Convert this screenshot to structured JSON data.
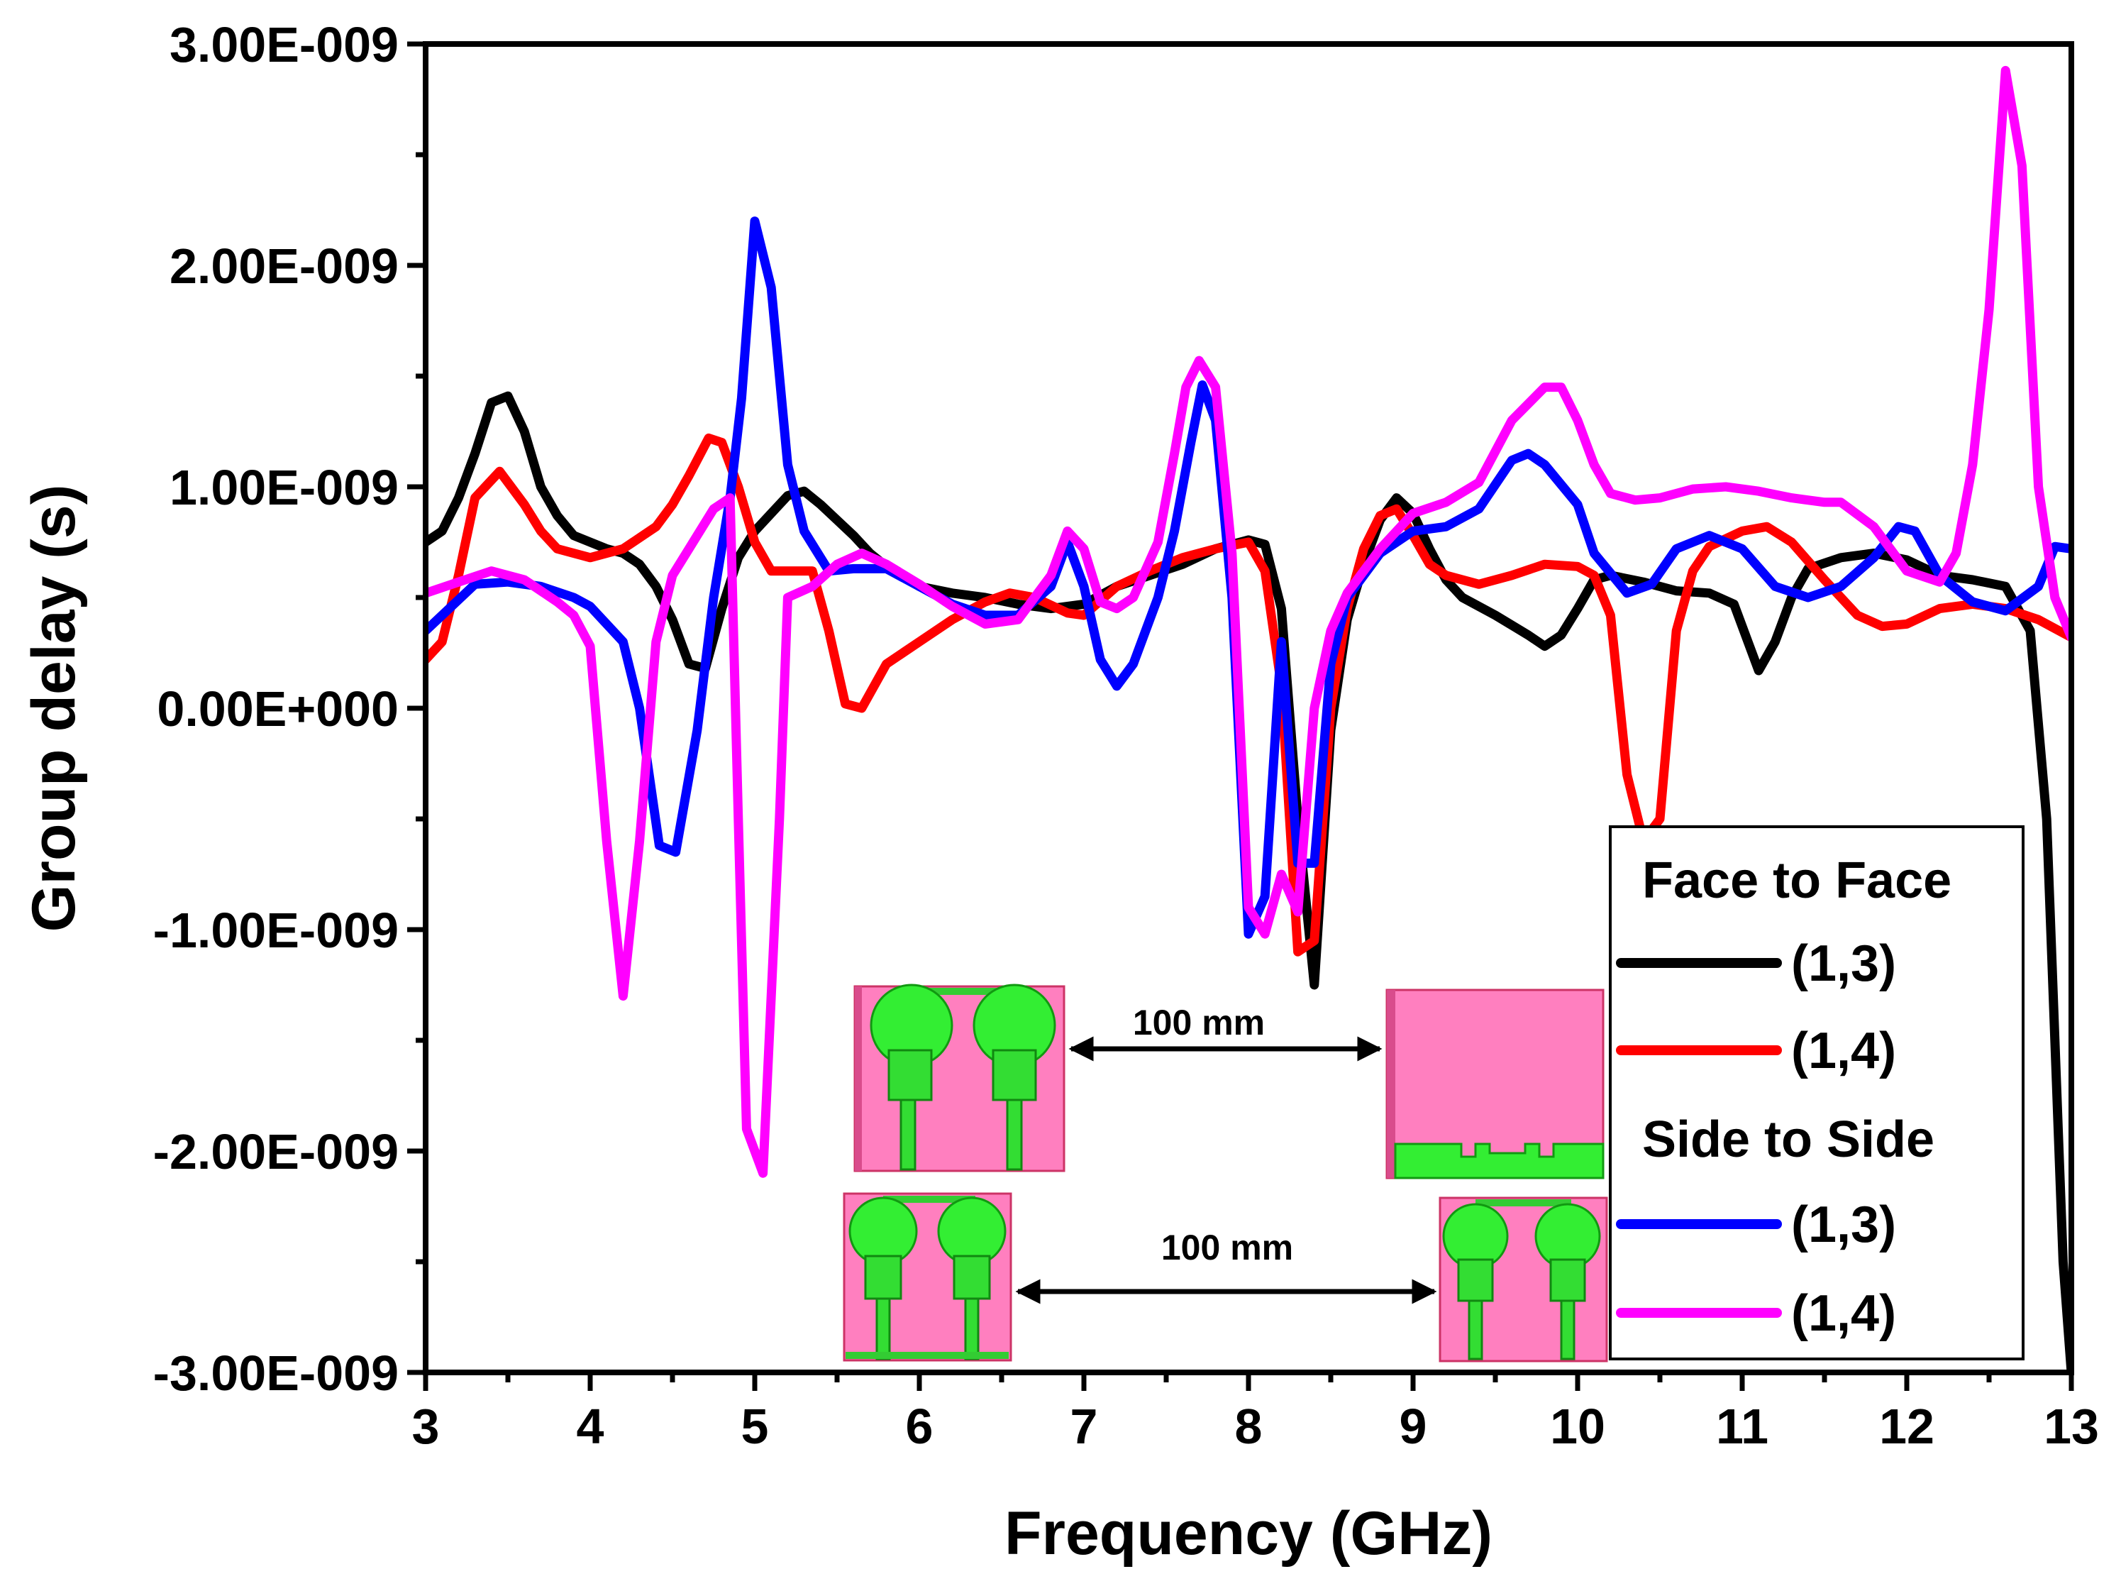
{
  "chart_data": {
    "type": "line",
    "title": "",
    "xlabel": "Frequency (GHz)",
    "ylabel": "Group delay (s)",
    "xlim": [
      3,
      13
    ],
    "ylim": [
      -3e-09,
      3e-09
    ],
    "x_ticks": [
      3,
      4,
      5,
      6,
      7,
      8,
      9,
      10,
      11,
      12,
      13
    ],
    "x_tick_labels": [
      "3",
      "4",
      "5",
      "6",
      "7",
      "8",
      "9",
      "10",
      "11",
      "12",
      "13"
    ],
    "y_ticks": [
      -3e-09,
      -2e-09,
      -1e-09,
      0,
      1e-09,
      2e-09,
      3e-09
    ],
    "y_tick_labels": [
      "-3.00E-009",
      "-2.00E-009",
      "-1.00E-009",
      "0.00E+000",
      "1.00E-009",
      "2.00E-009",
      "3.00E-009"
    ],
    "legend": {
      "position": "bottom-right",
      "groups": [
        {
          "title": "Face to Face",
          "entries": [
            "(1,3)",
            "(1,4)"
          ]
        },
        {
          "title": "Side to Side",
          "entries": [
            "(1,3)",
            "(1,4)"
          ]
        }
      ]
    },
    "annotations": [
      {
        "text": "100 mm"
      },
      {
        "text": "100 mm"
      }
    ],
    "series": [
      {
        "name": "Face to Face (1,3)",
        "color": "#000000",
        "points": [
          [
            3.0,
            0.75
          ],
          [
            3.1,
            0.8
          ],
          [
            3.2,
            0.95
          ],
          [
            3.3,
            1.15
          ],
          [
            3.4,
            1.38
          ],
          [
            3.5,
            1.41
          ],
          [
            3.6,
            1.25
          ],
          [
            3.7,
            1.0
          ],
          [
            3.8,
            0.87
          ],
          [
            3.9,
            0.78
          ],
          [
            4.0,
            0.75
          ],
          [
            4.1,
            0.72
          ],
          [
            4.2,
            0.7
          ],
          [
            4.3,
            0.65
          ],
          [
            4.4,
            0.55
          ],
          [
            4.5,
            0.4
          ],
          [
            4.6,
            0.2
          ],
          [
            4.7,
            0.18
          ],
          [
            4.8,
            0.45
          ],
          [
            4.9,
            0.68
          ],
          [
            5.0,
            0.8
          ],
          [
            5.1,
            0.88
          ],
          [
            5.2,
            0.96
          ],
          [
            5.3,
            0.98
          ],
          [
            5.4,
            0.92
          ],
          [
            5.5,
            0.85
          ],
          [
            5.6,
            0.78
          ],
          [
            5.7,
            0.7
          ],
          [
            5.8,
            0.64
          ],
          [
            5.9,
            0.6
          ],
          [
            6.0,
            0.55
          ],
          [
            6.2,
            0.52
          ],
          [
            6.4,
            0.5
          ],
          [
            6.6,
            0.47
          ],
          [
            6.8,
            0.45
          ],
          [
            7.0,
            0.47
          ],
          [
            7.2,
            0.55
          ],
          [
            7.4,
            0.6
          ],
          [
            7.6,
            0.65
          ],
          [
            7.8,
            0.72
          ],
          [
            8.0,
            0.76
          ],
          [
            8.1,
            0.74
          ],
          [
            8.2,
            0.45
          ],
          [
            8.3,
            -0.5
          ],
          [
            8.4,
            -1.25
          ],
          [
            8.5,
            -0.1
          ],
          [
            8.6,
            0.4
          ],
          [
            8.7,
            0.65
          ],
          [
            8.8,
            0.85
          ],
          [
            8.9,
            0.95
          ],
          [
            9.0,
            0.88
          ],
          [
            9.1,
            0.72
          ],
          [
            9.2,
            0.58
          ],
          [
            9.3,
            0.5
          ],
          [
            9.5,
            0.42
          ],
          [
            9.7,
            0.33
          ],
          [
            9.8,
            0.28
          ],
          [
            9.9,
            0.33
          ],
          [
            10.0,
            0.45
          ],
          [
            10.1,
            0.58
          ],
          [
            10.2,
            0.6
          ],
          [
            10.4,
            0.57
          ],
          [
            10.6,
            0.53
          ],
          [
            10.8,
            0.52
          ],
          [
            10.95,
            0.47
          ],
          [
            11.1,
            0.17
          ],
          [
            11.2,
            0.3
          ],
          [
            11.3,
            0.5
          ],
          [
            11.4,
            0.63
          ],
          [
            11.6,
            0.68
          ],
          [
            11.8,
            0.7
          ],
          [
            12.0,
            0.67
          ],
          [
            12.2,
            0.6
          ],
          [
            12.4,
            0.58
          ],
          [
            12.6,
            0.55
          ],
          [
            12.75,
            0.35
          ],
          [
            12.85,
            -0.5
          ],
          [
            12.95,
            -2.5
          ],
          [
            13.0,
            -3.0
          ]
        ]
      },
      {
        "name": "Face to Face (1,4)",
        "color": "#ff0000",
        "points": [
          [
            3.0,
            0.22
          ],
          [
            3.1,
            0.3
          ],
          [
            3.2,
            0.6
          ],
          [
            3.3,
            0.95
          ],
          [
            3.45,
            1.07
          ],
          [
            3.6,
            0.92
          ],
          [
            3.7,
            0.8
          ],
          [
            3.8,
            0.72
          ],
          [
            4.0,
            0.68
          ],
          [
            4.2,
            0.72
          ],
          [
            4.4,
            0.82
          ],
          [
            4.5,
            0.92
          ],
          [
            4.6,
            1.05
          ],
          [
            4.72,
            1.22
          ],
          [
            4.8,
            1.2
          ],
          [
            4.9,
            1.0
          ],
          [
            5.0,
            0.75
          ],
          [
            5.1,
            0.62
          ],
          [
            5.2,
            0.62
          ],
          [
            5.35,
            0.62
          ],
          [
            5.45,
            0.35
          ],
          [
            5.55,
            0.02
          ],
          [
            5.65,
            0.0
          ],
          [
            5.8,
            0.2
          ],
          [
            6.0,
            0.3
          ],
          [
            6.2,
            0.4
          ],
          [
            6.4,
            0.48
          ],
          [
            6.55,
            0.52
          ],
          [
            6.7,
            0.5
          ],
          [
            6.9,
            0.43
          ],
          [
            7.0,
            0.42
          ],
          [
            7.2,
            0.55
          ],
          [
            7.4,
            0.62
          ],
          [
            7.6,
            0.68
          ],
          [
            7.8,
            0.72
          ],
          [
            8.0,
            0.75
          ],
          [
            8.1,
            0.62
          ],
          [
            8.2,
            0.1
          ],
          [
            8.3,
            -1.1
          ],
          [
            8.4,
            -1.05
          ],
          [
            8.5,
            0.0
          ],
          [
            8.6,
            0.45
          ],
          [
            8.7,
            0.72
          ],
          [
            8.8,
            0.87
          ],
          [
            8.9,
            0.9
          ],
          [
            9.0,
            0.78
          ],
          [
            9.1,
            0.65
          ],
          [
            9.2,
            0.6
          ],
          [
            9.4,
            0.56
          ],
          [
            9.6,
            0.6
          ],
          [
            9.8,
            0.65
          ],
          [
            10.0,
            0.64
          ],
          [
            10.1,
            0.6
          ],
          [
            10.2,
            0.42
          ],
          [
            10.3,
            -0.3
          ],
          [
            10.4,
            -0.6
          ],
          [
            10.5,
            -0.5
          ],
          [
            10.6,
            0.35
          ],
          [
            10.7,
            0.62
          ],
          [
            10.8,
            0.73
          ],
          [
            11.0,
            0.8
          ],
          [
            11.15,
            0.82
          ],
          [
            11.3,
            0.75
          ],
          [
            11.5,
            0.58
          ],
          [
            11.7,
            0.42
          ],
          [
            11.85,
            0.37
          ],
          [
            12.0,
            0.38
          ],
          [
            12.2,
            0.45
          ],
          [
            12.4,
            0.47
          ],
          [
            12.6,
            0.45
          ],
          [
            12.8,
            0.4
          ],
          [
            13.0,
            0.32
          ]
        ]
      },
      {
        "name": "Side to Side (1,3)",
        "color": "#0000ff",
        "points": [
          [
            3.0,
            0.35
          ],
          [
            3.1,
            0.42
          ],
          [
            3.3,
            0.56
          ],
          [
            3.5,
            0.57
          ],
          [
            3.7,
            0.55
          ],
          [
            3.9,
            0.5
          ],
          [
            4.0,
            0.46
          ],
          [
            4.1,
            0.38
          ],
          [
            4.2,
            0.3
          ],
          [
            4.3,
            0.0
          ],
          [
            4.42,
            -0.62
          ],
          [
            4.52,
            -0.65
          ],
          [
            4.65,
            -0.1
          ],
          [
            4.75,
            0.5
          ],
          [
            4.85,
            0.95
          ],
          [
            4.92,
            1.4
          ],
          [
            5.0,
            2.2
          ],
          [
            5.1,
            1.9
          ],
          [
            5.2,
            1.1
          ],
          [
            5.3,
            0.8
          ],
          [
            5.45,
            0.62
          ],
          [
            5.6,
            0.63
          ],
          [
            5.8,
            0.63
          ],
          [
            6.0,
            0.55
          ],
          [
            6.2,
            0.47
          ],
          [
            6.4,
            0.42
          ],
          [
            6.6,
            0.42
          ],
          [
            6.8,
            0.55
          ],
          [
            6.9,
            0.75
          ],
          [
            7.0,
            0.55
          ],
          [
            7.1,
            0.22
          ],
          [
            7.2,
            0.1
          ],
          [
            7.3,
            0.2
          ],
          [
            7.45,
            0.5
          ],
          [
            7.55,
            0.8
          ],
          [
            7.65,
            1.2
          ],
          [
            7.72,
            1.46
          ],
          [
            7.8,
            1.3
          ],
          [
            7.9,
            0.5
          ],
          [
            8.0,
            -1.02
          ],
          [
            8.1,
            -0.85
          ],
          [
            8.2,
            0.3
          ],
          [
            8.3,
            -0.7
          ],
          [
            8.4,
            -0.7
          ],
          [
            8.5,
            0.2
          ],
          [
            8.6,
            0.5
          ],
          [
            8.8,
            0.7
          ],
          [
            9.0,
            0.8
          ],
          [
            9.2,
            0.82
          ],
          [
            9.4,
            0.9
          ],
          [
            9.6,
            1.12
          ],
          [
            9.7,
            1.15
          ],
          [
            9.8,
            1.1
          ],
          [
            10.0,
            0.92
          ],
          [
            10.1,
            0.7
          ],
          [
            10.3,
            0.52
          ],
          [
            10.45,
            0.56
          ],
          [
            10.6,
            0.72
          ],
          [
            10.8,
            0.78
          ],
          [
            11.0,
            0.72
          ],
          [
            11.2,
            0.55
          ],
          [
            11.4,
            0.5
          ],
          [
            11.6,
            0.55
          ],
          [
            11.8,
            0.68
          ],
          [
            11.95,
            0.82
          ],
          [
            12.05,
            0.8
          ],
          [
            12.2,
            0.6
          ],
          [
            12.4,
            0.48
          ],
          [
            12.6,
            0.44
          ],
          [
            12.8,
            0.55
          ],
          [
            12.9,
            0.73
          ],
          [
            13.0,
            0.72
          ]
        ]
      },
      {
        "name": "Side to Side (1,4)",
        "color": "#ff00ff",
        "points": [
          [
            3.0,
            0.52
          ],
          [
            3.2,
            0.57
          ],
          [
            3.4,
            0.62
          ],
          [
            3.6,
            0.58
          ],
          [
            3.8,
            0.48
          ],
          [
            3.9,
            0.42
          ],
          [
            4.0,
            0.28
          ],
          [
            4.1,
            -0.6
          ],
          [
            4.2,
            -1.3
          ],
          [
            4.3,
            -0.6
          ],
          [
            4.4,
            0.3
          ],
          [
            4.5,
            0.6
          ],
          [
            4.6,
            0.72
          ],
          [
            4.75,
            0.9
          ],
          [
            4.85,
            0.95
          ],
          [
            4.9,
            -0.5
          ],
          [
            4.95,
            -1.9
          ],
          [
            5.05,
            -2.1
          ],
          [
            5.15,
            -0.5
          ],
          [
            5.2,
            0.5
          ],
          [
            5.35,
            0.55
          ],
          [
            5.5,
            0.65
          ],
          [
            5.65,
            0.7
          ],
          [
            5.8,
            0.65
          ],
          [
            6.0,
            0.56
          ],
          [
            6.2,
            0.46
          ],
          [
            6.4,
            0.38
          ],
          [
            6.6,
            0.4
          ],
          [
            6.8,
            0.6
          ],
          [
            6.9,
            0.8
          ],
          [
            7.0,
            0.72
          ],
          [
            7.1,
            0.48
          ],
          [
            7.2,
            0.45
          ],
          [
            7.3,
            0.5
          ],
          [
            7.45,
            0.75
          ],
          [
            7.55,
            1.15
          ],
          [
            7.62,
            1.45
          ],
          [
            7.7,
            1.57
          ],
          [
            7.8,
            1.45
          ],
          [
            7.9,
            0.7
          ],
          [
            8.0,
            -0.9
          ],
          [
            8.1,
            -1.02
          ],
          [
            8.2,
            -0.75
          ],
          [
            8.3,
            -0.92
          ],
          [
            8.4,
            0.0
          ],
          [
            8.5,
            0.35
          ],
          [
            8.6,
            0.52
          ],
          [
            8.8,
            0.72
          ],
          [
            9.0,
            0.88
          ],
          [
            9.2,
            0.93
          ],
          [
            9.4,
            1.02
          ],
          [
            9.6,
            1.3
          ],
          [
            9.8,
            1.45
          ],
          [
            9.9,
            1.45
          ],
          [
            10.0,
            1.3
          ],
          [
            10.1,
            1.1
          ],
          [
            10.2,
            0.97
          ],
          [
            10.35,
            0.94
          ],
          [
            10.5,
            0.95
          ],
          [
            10.7,
            0.99
          ],
          [
            10.9,
            1.0
          ],
          [
            11.1,
            0.98
          ],
          [
            11.3,
            0.95
          ],
          [
            11.5,
            0.93
          ],
          [
            11.6,
            0.93
          ],
          [
            11.8,
            0.82
          ],
          [
            12.0,
            0.62
          ],
          [
            12.2,
            0.57
          ],
          [
            12.3,
            0.7
          ],
          [
            12.4,
            1.1
          ],
          [
            12.5,
            1.8
          ],
          [
            12.6,
            2.88
          ],
          [
            12.7,
            2.45
          ],
          [
            12.8,
            1.0
          ],
          [
            12.9,
            0.5
          ],
          [
            13.0,
            0.32
          ]
        ]
      }
    ]
  }
}
